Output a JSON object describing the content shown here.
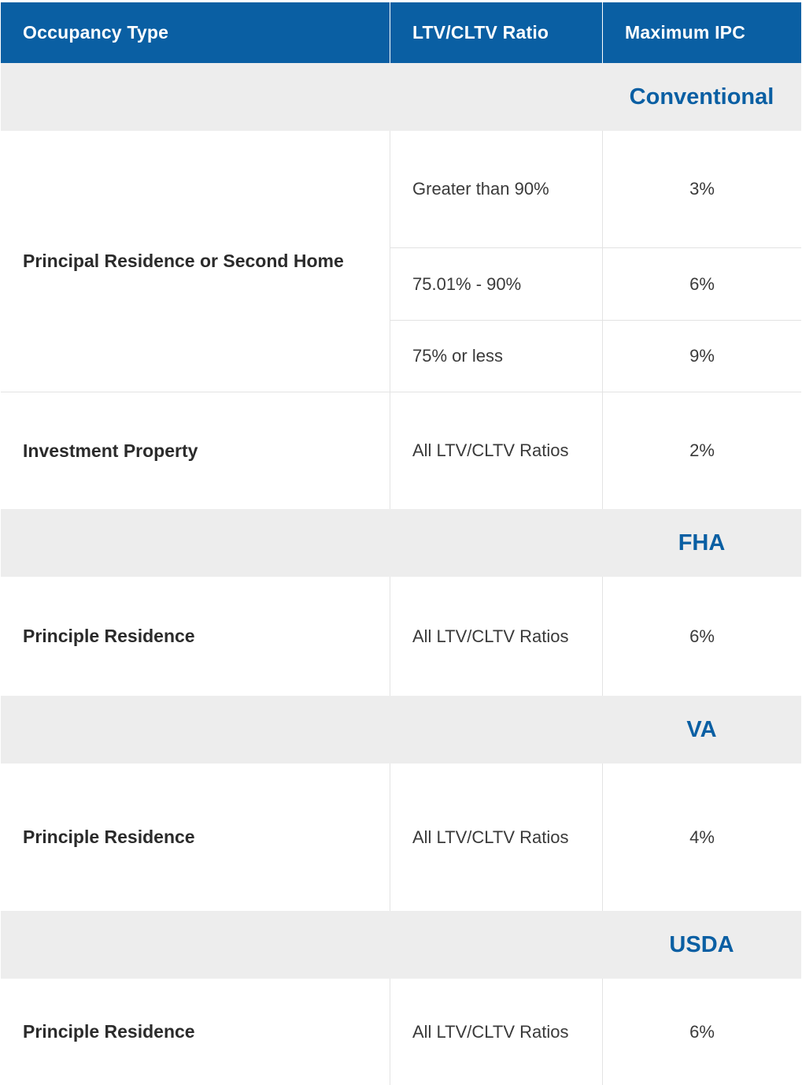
{
  "header": {
    "col1": "Occupancy Type",
    "col2": "LTV/CLTV Ratio",
    "col3": "Maximum IPC"
  },
  "sections": {
    "conventional": {
      "label": "Conventional",
      "principal": {
        "occupancy": "Principal Residence or Second Home",
        "tiers": [
          {
            "ratio": "Greater than 90%",
            "ipc": "3%"
          },
          {
            "ratio": "75.01% - 90%",
            "ipc": "6%"
          },
          {
            "ratio": "75% or less",
            "ipc": "9%"
          }
        ]
      },
      "investment": {
        "occupancy": "Investment Property",
        "ratio": "All LTV/CLTV Ratios",
        "ipc": "2%"
      }
    },
    "fha": {
      "label": "FHA",
      "occupancy": "Principle Residence",
      "ratio": "All LTV/CLTV Ratios",
      "ipc": "6%"
    },
    "va": {
      "label": "VA",
      "occupancy": "Principle Residence",
      "ratio": "All LTV/CLTV Ratios",
      "ipc": "4%"
    },
    "usda": {
      "label": "USDA",
      "occupancy": "Principle Residence",
      "ratio": "All LTV/CLTV Ratios",
      "ipc": "6%"
    }
  },
  "colors": {
    "header_bg": "#0a5fa3",
    "section_bg": "#ededed",
    "section_text": "#0a5fa3"
  }
}
